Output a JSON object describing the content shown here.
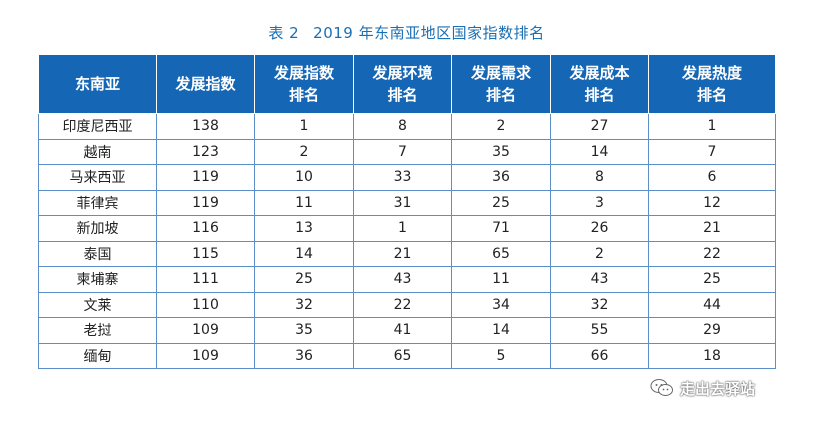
{
  "caption": {
    "table_no": "表 2",
    "title": "2019 年东南亚地区国家指数排名"
  },
  "table": {
    "headers": [
      [
        "东南亚"
      ],
      [
        "发展指数"
      ],
      [
        "发展指数",
        "排名"
      ],
      [
        "发展环境",
        "排名"
      ],
      [
        "发展需求",
        "排名"
      ],
      [
        "发展成本",
        "排名"
      ],
      [
        "发展热度",
        "排名"
      ]
    ],
    "rows": [
      [
        "印度尼西亚",
        "138",
        "1",
        "8",
        "2",
        "27",
        "1"
      ],
      [
        "越南",
        "123",
        "2",
        "7",
        "35",
        "14",
        "7"
      ],
      [
        "马来西亚",
        "119",
        "10",
        "33",
        "36",
        "8",
        "6"
      ],
      [
        "菲律宾",
        "119",
        "11",
        "31",
        "25",
        "3",
        "12"
      ],
      [
        "新加坡",
        "116",
        "13",
        "1",
        "71",
        "26",
        "21"
      ],
      [
        "泰国",
        "115",
        "14",
        "21",
        "65",
        "2",
        "22"
      ],
      [
        "柬埔寨",
        "111",
        "25",
        "43",
        "11",
        "43",
        "25"
      ],
      [
        "文莱",
        "110",
        "32",
        "22",
        "34",
        "32",
        "44"
      ],
      [
        "老挝",
        "109",
        "35",
        "41",
        "14",
        "55",
        "29"
      ],
      [
        "缅甸",
        "109",
        "36",
        "65",
        "5",
        "66",
        "18"
      ]
    ]
  },
  "watermark": {
    "text": "走出去驿站",
    "icon": "wechat-icon"
  }
}
